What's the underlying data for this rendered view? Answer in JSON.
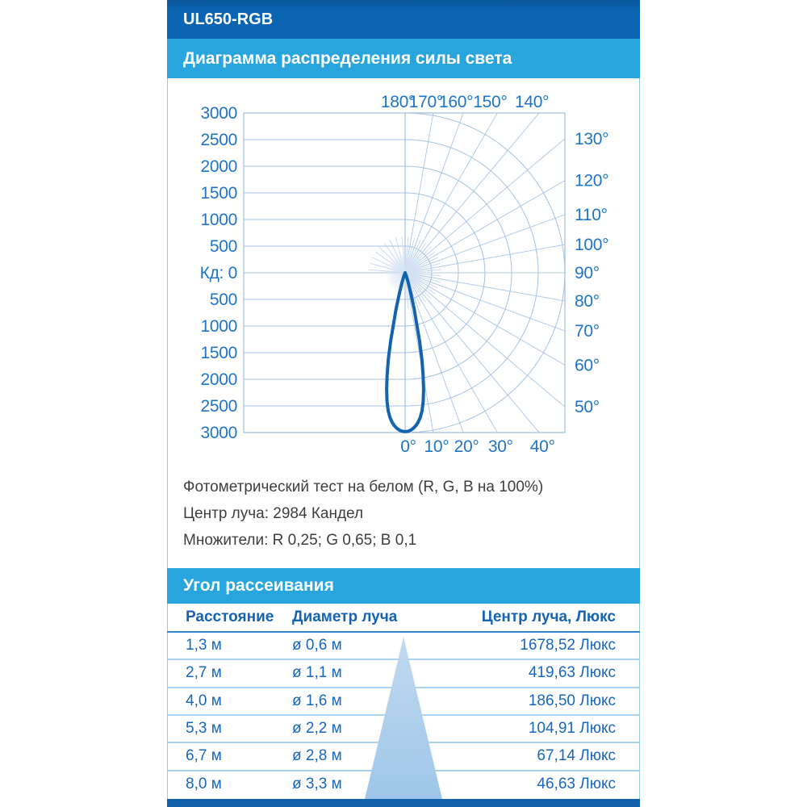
{
  "header": {
    "product": "UL650-RGB"
  },
  "sections": {
    "diagram_title": "Диаграмма распределения силы света",
    "beam_angle_title": "Угол рассеивания"
  },
  "chart_data": {
    "type": "polar",
    "title": "Диаграмма распределения силы света",
    "radial_axis": {
      "unit_label": "Кд",
      "ticks": [
        0,
        500,
        1000,
        1500,
        2000,
        2500,
        3000
      ],
      "max": 3000,
      "grid": true
    },
    "left_axis_labels": [
      "3000",
      "2500",
      "2000",
      "1500",
      "1000",
      "500",
      "Кд: 0",
      "500",
      "1000",
      "1500",
      "2000",
      "2500",
      "3000"
    ],
    "angle_labels": {
      "top": [
        "180°",
        "170°",
        "160°",
        "150°",
        "140°"
      ],
      "right": [
        "130°",
        "120°",
        "110°",
        "100°",
        "90°",
        "80°",
        "70°",
        "60°",
        "50°"
      ],
      "bottom": [
        "0°",
        "10°",
        "20°",
        "30°",
        "40°"
      ]
    },
    "angle_step_deg": 10,
    "beam_peak_cd": 2984,
    "beam_profile_deg_cd": [
      [
        0,
        2984
      ],
      [
        1,
        2978
      ],
      [
        2,
        2958
      ],
      [
        3,
        2925
      ],
      [
        4,
        2878
      ],
      [
        5,
        2815
      ],
      [
        6,
        2730
      ],
      [
        7,
        2610
      ],
      [
        8,
        2440
      ],
      [
        9,
        2220
      ],
      [
        10,
        1950
      ],
      [
        11,
        1640
      ],
      [
        12,
        1300
      ],
      [
        14,
        700
      ],
      [
        16,
        360
      ],
      [
        18,
        160
      ],
      [
        20,
        60
      ],
      [
        22,
        0
      ]
    ]
  },
  "notes": {
    "test": "Фотометрический тест на белом (R, G, B на 100%)",
    "beam_center": "Центр луча: 2984 Кандел",
    "multipliers": "Множители: R 0,25; G 0,65; B 0,1"
  },
  "table": {
    "columns": [
      "Расстояние",
      "Диаметр луча",
      "Центр луча, Люкс"
    ],
    "rows": [
      [
        "1,3 м",
        "ø 0,6 м",
        "1678,52 Люкс"
      ],
      [
        "2,7 м",
        "ø 1,1 м",
        "419,63 Люкс"
      ],
      [
        "4,0 м",
        "ø 1,6 м",
        "186,50 Люкс"
      ],
      [
        "5,3 м",
        "ø 2,2 м",
        "104,91 Люкс"
      ],
      [
        "6,7 м",
        "ø 2,8 м",
        "67,14 Люкс"
      ],
      [
        "8,0 м",
        "ø 3,3 м",
        "46,63 Люкс"
      ]
    ]
  },
  "colors": {
    "header_bar": "#0b64b1",
    "section_bar": "#29a5de",
    "bottom_bar": "#1160ac",
    "grid_line": "#a5c2e4",
    "ray_line": "#b3cbe9",
    "chart_border": "#9fbfe2",
    "axis_label": "#1e74c8",
    "beam_curve": "#1463ae",
    "table_text": "#1766c0",
    "table_header_text": "#1563b4",
    "cone_top": "#c2daf1",
    "cone_bottom": "#9ec6e8"
  }
}
